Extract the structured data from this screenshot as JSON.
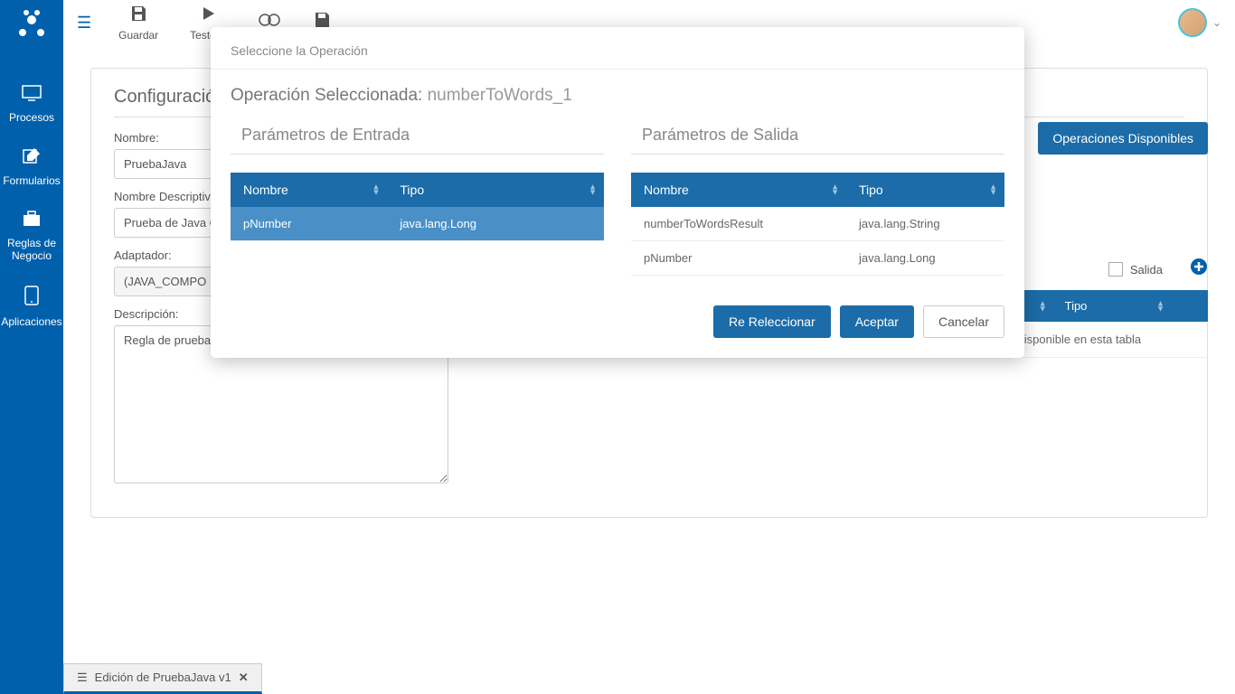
{
  "sidebar": {
    "items": [
      {
        "label": "Procesos"
      },
      {
        "label": "Formularios"
      },
      {
        "label": "Reglas de\nNegocio"
      },
      {
        "label": "Aplicaciones"
      }
    ]
  },
  "toolbar": {
    "save": "Guardar",
    "test": "Testear"
  },
  "panel": {
    "title": "Configuración",
    "name_label": "Nombre:",
    "name_value": "PruebaJava",
    "descname_label": "Nombre Descriptivo:",
    "descname_value": "Prueba de Java C",
    "adapter_label": "Adaptador:",
    "adapter_value": "(JAVA_COMPO",
    "desc_label": "Descripción:",
    "desc_value": "Regla de prueba"
  },
  "right": {
    "ops_button": "Operaciones Disponibles",
    "salida_label": "Salida"
  },
  "bg_tables": {
    "col_nombre": "Nombre",
    "col_tipo": "Tipo",
    "empty": "Ningún dato disponible en esta tabla"
  },
  "bottom_tab": {
    "label": "Edición de PruebaJava v1"
  },
  "modal": {
    "header": "Seleccione la Operación",
    "op_title_prefix": "Operación Seleccionada: ",
    "op_name": "numberToWords_1",
    "col_entrada_title": "Parámetros de Entrada",
    "col_salida_title": "Parámetros de Salida",
    "th_nombre": "Nombre",
    "th_tipo": "Tipo",
    "entrada_rows": [
      {
        "nombre": "pNumber",
        "tipo": "java.lang.Long"
      }
    ],
    "salida_rows": [
      {
        "nombre": "numberToWordsResult",
        "tipo": "java.lang.String"
      },
      {
        "nombre": "pNumber",
        "tipo": "java.lang.Long"
      }
    ],
    "btn_reselect": "Re Releccionar",
    "btn_accept": "Aceptar",
    "btn_cancel": "Cancelar"
  },
  "colors": {
    "primary": "#0060ac",
    "header_blue": "#1b6ca8",
    "row_selected": "#4a90c7"
  }
}
